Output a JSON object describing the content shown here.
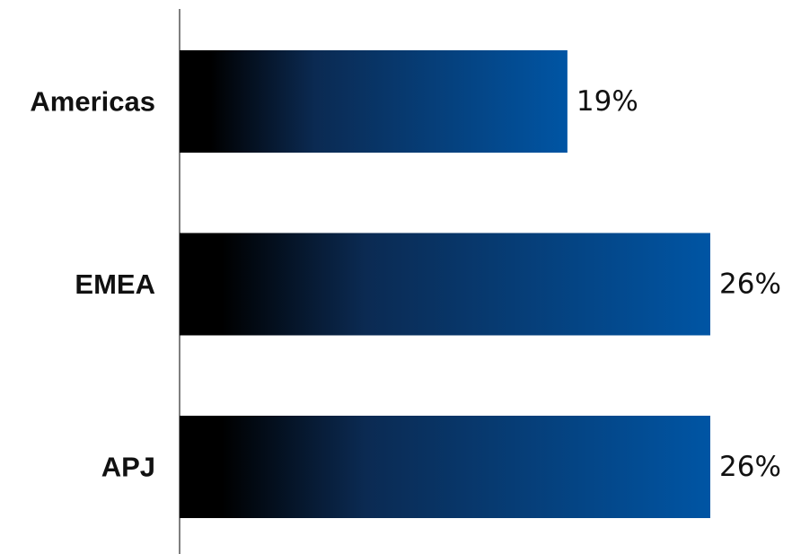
{
  "chart_data": {
    "type": "bar",
    "orientation": "horizontal",
    "title": "",
    "xlabel": "",
    "ylabel": "",
    "categories": [
      "Americas",
      "EMEA",
      "APJ"
    ],
    "values": [
      19,
      26,
      26
    ],
    "value_labels": [
      "19%",
      "26%",
      "26%"
    ],
    "xlim": [
      0,
      26
    ],
    "grid": false,
    "legend": "none",
    "colors": {
      "bar_start": "#000000",
      "bar_mid": "#0b2a52",
      "bar_end": "#0055a4",
      "axis": "#555555",
      "text": "#111111"
    }
  }
}
